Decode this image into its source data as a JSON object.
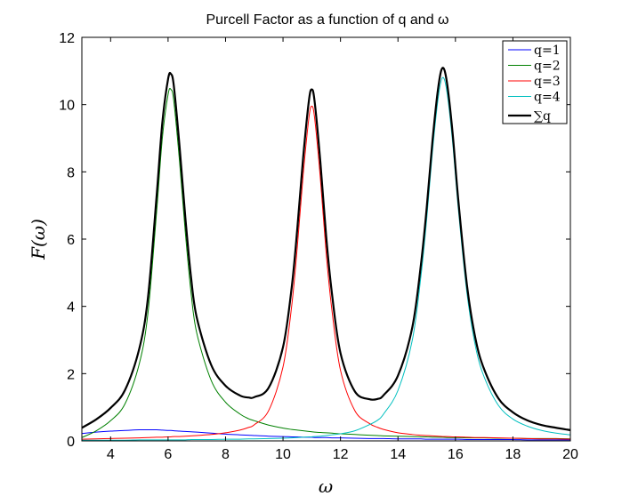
{
  "chart_data": {
    "type": "line",
    "title": "Purcell Factor as a function of q and ω",
    "xlabel": "ω",
    "ylabel": "F(ω)",
    "xlim": [
      3,
      20
    ],
    "ylim": [
      0,
      12
    ],
    "xticks": [
      4,
      6,
      8,
      10,
      12,
      14,
      16,
      18,
      20
    ],
    "yticks": [
      0,
      2,
      4,
      6,
      8,
      10,
      12
    ],
    "grid": false,
    "legend_position": "top-right",
    "x": [
      3,
      3.5,
      4,
      4.5,
      5,
      5.3,
      5.6,
      5.8,
      6,
      6.1,
      6.2,
      6.4,
      6.6,
      6.8,
      7,
      7.5,
      8,
      8.5,
      8.8,
      9,
      9.5,
      10,
      10.3,
      10.5,
      10.7,
      10.9,
      11,
      11.1,
      11.3,
      11.5,
      11.7,
      12,
      12.5,
      13,
      13.3,
      13.5,
      14,
      14.5,
      14.8,
      15,
      15.2,
      15.4,
      15.55,
      15.7,
      15.9,
      16.1,
      16.4,
      16.7,
      17,
      17.5,
      18,
      18.5,
      19,
      19.5,
      20
    ],
    "series": [
      {
        "name": "q=1",
        "color": "#0000ff",
        "values": [
          0.22,
          0.26,
          0.29,
          0.31,
          0.33,
          0.33,
          0.33,
          0.32,
          0.31,
          0.31,
          0.3,
          0.29,
          0.28,
          0.27,
          0.26,
          0.23,
          0.2,
          0.18,
          0.17,
          0.16,
          0.14,
          0.13,
          0.12,
          0.12,
          0.11,
          0.11,
          0.11,
          0.1,
          0.1,
          0.1,
          0.09,
          0.09,
          0.08,
          0.07,
          0.07,
          0.07,
          0.06,
          0.06,
          0.06,
          0.05,
          0.05,
          0.05,
          0.05,
          0.05,
          0.05,
          0.05,
          0.04,
          0.04,
          0.04,
          0.04,
          0.04,
          0.03,
          0.03,
          0.03,
          0.03
        ]
      },
      {
        "name": "q=2",
        "color": "#008000",
        "values": [
          0.1,
          0.3,
          0.6,
          1.1,
          2.3,
          3.8,
          6.8,
          9.0,
          10.3,
          10.45,
          10.1,
          8.3,
          6.2,
          4.4,
          3.2,
          1.8,
          1.15,
          0.8,
          0.66,
          0.6,
          0.47,
          0.38,
          0.34,
          0.32,
          0.3,
          0.28,
          0.27,
          0.26,
          0.25,
          0.24,
          0.23,
          0.21,
          0.19,
          0.17,
          0.16,
          0.15,
          0.14,
          0.13,
          0.12,
          0.12,
          0.11,
          0.11,
          0.11,
          0.1,
          0.1,
          0.1,
          0.09,
          0.09,
          0.09,
          0.08,
          0.08,
          0.07,
          0.07,
          0.07,
          0.06
        ]
      },
      {
        "name": "q=3",
        "color": "#ff0000",
        "values": [
          0.05,
          0.06,
          0.07,
          0.08,
          0.09,
          0.1,
          0.11,
          0.11,
          0.12,
          0.12,
          0.13,
          0.13,
          0.14,
          0.15,
          0.16,
          0.19,
          0.24,
          0.32,
          0.4,
          0.48,
          0.9,
          2.2,
          4.0,
          5.8,
          7.9,
          9.6,
          9.95,
          9.6,
          7.8,
          5.6,
          3.9,
          2.1,
          0.9,
          0.52,
          0.4,
          0.34,
          0.24,
          0.19,
          0.17,
          0.16,
          0.15,
          0.14,
          0.13,
          0.13,
          0.12,
          0.12,
          0.11,
          0.1,
          0.1,
          0.09,
          0.08,
          0.07,
          0.06,
          0.06,
          0.05
        ]
      },
      {
        "name": "q=4",
        "color": "#00bfbf",
        "values": [
          0.02,
          0.02,
          0.02,
          0.02,
          0.03,
          0.03,
          0.03,
          0.03,
          0.03,
          0.03,
          0.03,
          0.03,
          0.03,
          0.04,
          0.04,
          0.04,
          0.05,
          0.05,
          0.06,
          0.06,
          0.07,
          0.08,
          0.09,
          0.1,
          0.11,
          0.12,
          0.12,
          0.13,
          0.14,
          0.16,
          0.18,
          0.21,
          0.3,
          0.48,
          0.62,
          0.8,
          1.5,
          3.0,
          4.9,
          6.6,
          8.6,
          10.2,
          10.8,
          10.4,
          8.9,
          6.9,
          4.4,
          2.8,
          1.9,
          1.05,
          0.65,
          0.44,
          0.31,
          0.23,
          0.18
        ]
      },
      {
        "name": "∑q",
        "color": "#000000",
        "values": [
          0.39,
          0.64,
          0.98,
          1.51,
          2.75,
          4.26,
          7.27,
          9.46,
          10.76,
          10.91,
          10.56,
          8.75,
          6.65,
          4.86,
          3.66,
          2.26,
          1.64,
          1.35,
          1.29,
          1.3,
          1.58,
          2.79,
          4.55,
          6.34,
          8.42,
          10.11,
          10.45,
          10.09,
          8.29,
          6.1,
          4.4,
          2.61,
          1.47,
          1.24,
          1.25,
          1.36,
          1.94,
          3.38,
          5.25,
          6.93,
          8.91,
          10.5,
          11.09,
          10.68,
          9.17,
          7.16,
          4.64,
          3.03,
          2.13,
          1.26,
          0.85,
          0.61,
          0.47,
          0.39,
          0.32
        ]
      }
    ]
  }
}
